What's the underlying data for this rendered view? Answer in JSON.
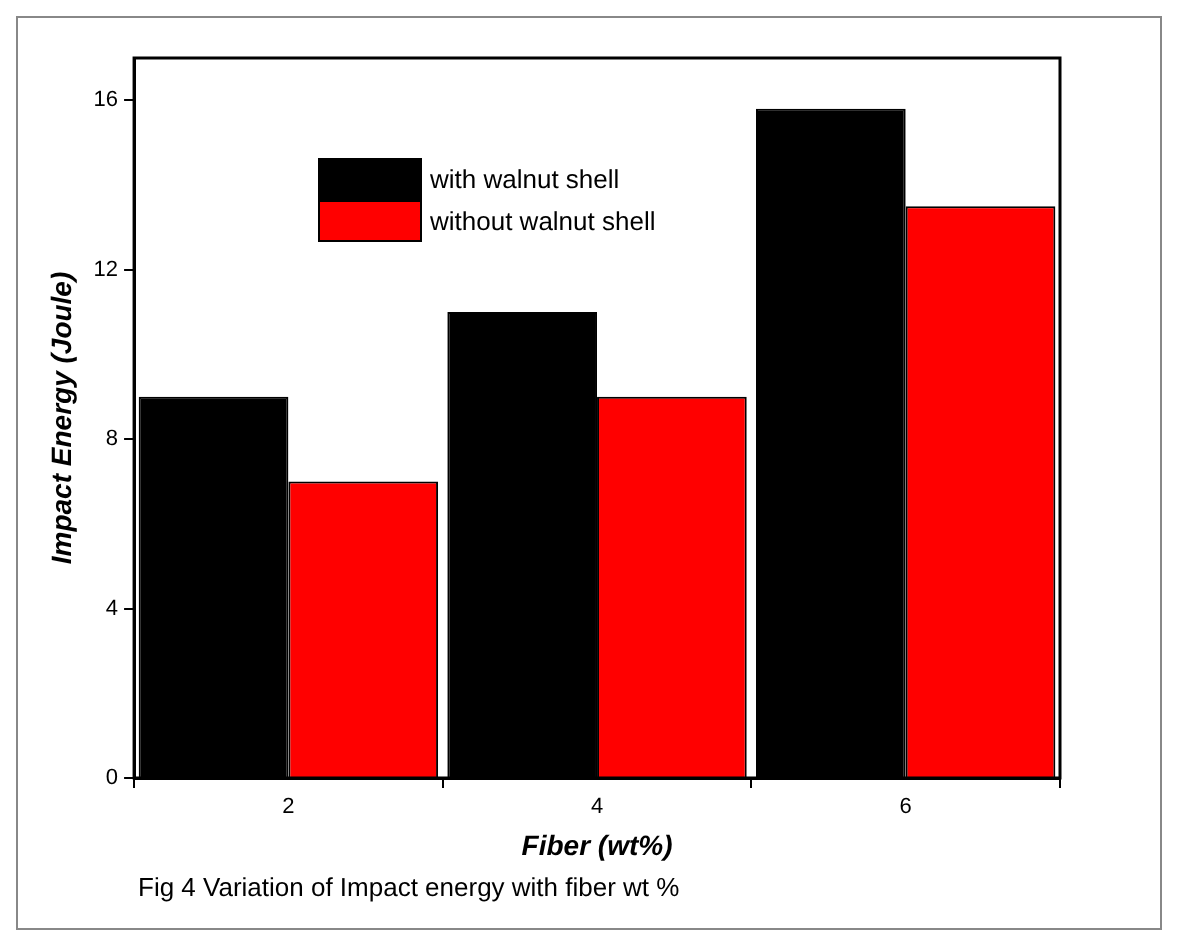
{
  "chart_data": {
    "type": "bar",
    "xlabel": "Fiber (wt%)",
    "ylabel": "Impact Energy (Joule)",
    "categories": [
      "2",
      "4",
      "6"
    ],
    "series": [
      {
        "name": "with walnut shell",
        "color": "#000000",
        "values": [
          9,
          11,
          15.8
        ]
      },
      {
        "name": "without walnut shell",
        "color": "#ff0000",
        "values": [
          7,
          9,
          13.5
        ]
      }
    ],
    "ylim": [
      0,
      17
    ],
    "yticks": [
      0,
      4,
      8,
      12,
      16
    ],
    "grid": false,
    "legend": "top left",
    "annotations": [
      "Fig 4 Variation of Impact energy with fiber wt %"
    ]
  }
}
